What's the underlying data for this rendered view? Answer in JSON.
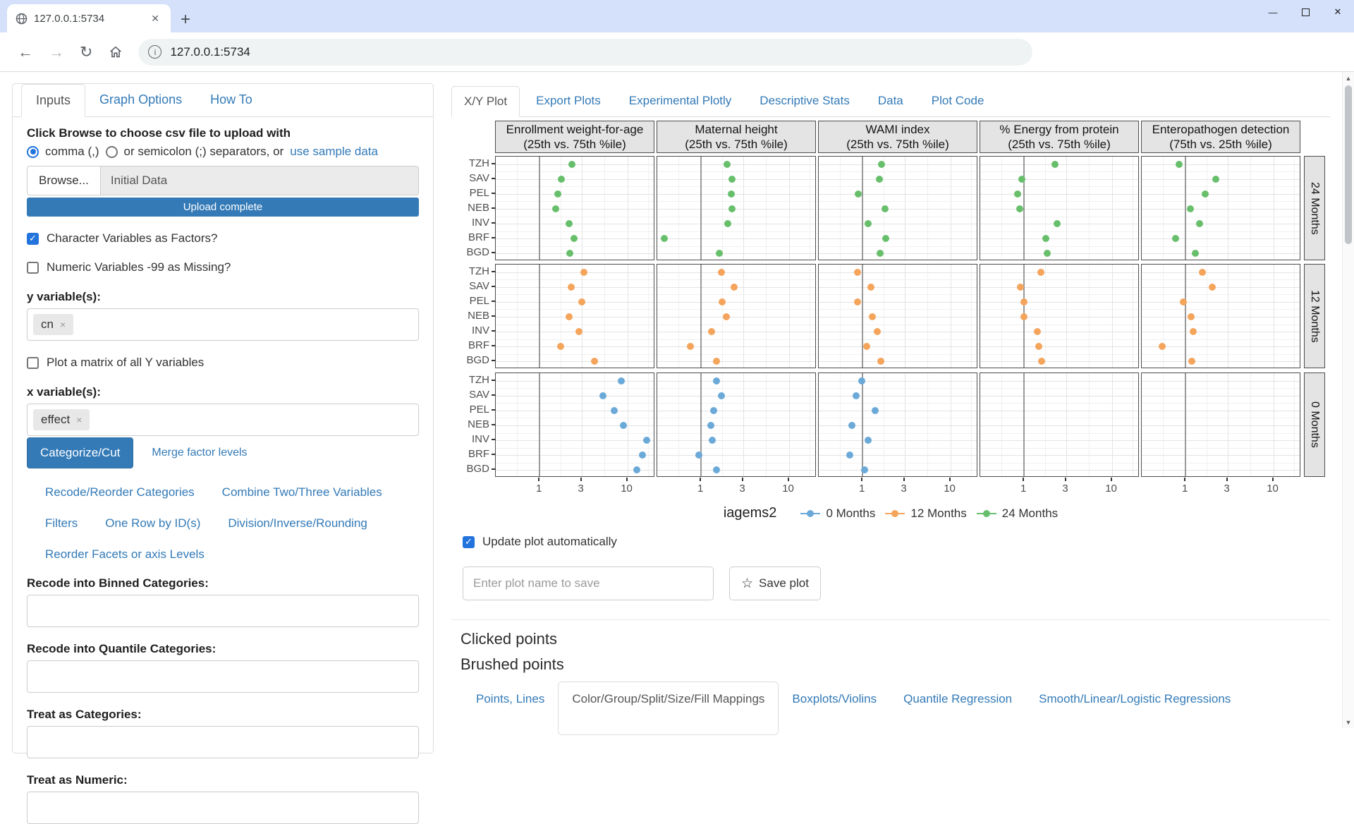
{
  "browser": {
    "tab_title": "127.0.0.1:5734",
    "url": "127.0.0.1:5734",
    "icons": {
      "back": "←",
      "forward": "→",
      "reload": "↻",
      "info": "i",
      "close_tab": "✕",
      "new_tab": "+",
      "minimize": "—",
      "close_window": "✕",
      "scroll_up": "▲",
      "scroll_down": "▼"
    }
  },
  "sidebar": {
    "tabs": [
      {
        "label": "Inputs",
        "active": true
      },
      {
        "label": "Graph Options",
        "active": false
      },
      {
        "label": "How To",
        "active": false
      }
    ],
    "upload": {
      "heading": "Click Browse to choose csv file to upload with",
      "radio_comma_label": "comma (,)",
      "radio_semicolon_label": "or semicolon (;) separators, or",
      "sample_link": "use sample data",
      "browse_label": "Browse...",
      "file_value": "Initial Data",
      "progress_text": "Upload complete"
    },
    "checkbox_char_factors": {
      "label": "Character Variables as Factors?",
      "checked": true
    },
    "checkbox_missing99": {
      "label": "Numeric Variables -99 as Missing?",
      "checked": false
    },
    "y_label": "y variable(s):",
    "y_token": "cn",
    "checkbox_matrix": {
      "label": "Plot a matrix of all Y variables",
      "checked": false
    },
    "x_label": "x variable(s):",
    "x_token": "effect",
    "categorize_button": "Categorize/Cut",
    "merge_link": "Merge factor levels",
    "link_rows": [
      [
        "Recode/Reorder Categories",
        "Combine Two/Three Variables"
      ],
      [
        "Filters",
        "One Row by ID(s)",
        "Division/Inverse/Rounding"
      ],
      [
        "Reorder Facets or axis Levels"
      ]
    ],
    "recode_fields": [
      "Recode into Binned Categories:",
      "Recode into Quantile Categories:",
      "Treat as Categories:",
      "Treat as Numeric:"
    ]
  },
  "main": {
    "tabs": [
      {
        "label": "X/Y Plot",
        "active": true
      },
      {
        "label": "Export Plots",
        "active": false
      },
      {
        "label": "Experimental Plotly",
        "active": false
      },
      {
        "label": "Descriptive Stats",
        "active": false
      },
      {
        "label": "Data",
        "active": false
      },
      {
        "label": "Plot Code",
        "active": false
      }
    ],
    "update_auto_label": "Update plot automatically",
    "update_auto_checked": true,
    "save_placeholder": "Enter plot name to save",
    "save_button": "Save plot",
    "clicked_heading": "Clicked points",
    "brushed_heading": "Brushed points",
    "bottom_tabs": [
      {
        "label": "Points, Lines",
        "active": false
      },
      {
        "label": "Color/Group/Split/Size/Fill Mappings",
        "active": true
      },
      {
        "label": "Boxplots/Violins",
        "active": false
      },
      {
        "label": "Quantile Regression",
        "active": false
      },
      {
        "label": "Smooth/Linear/Logistic Regressions",
        "active": false
      }
    ]
  },
  "chart_data": {
    "type": "scatter",
    "x_scale": "log10",
    "x_ticks": [
      1,
      3,
      10
    ],
    "x_range": [
      0.32,
      20.8
    ],
    "reference_line_x": 1,
    "grid": true,
    "legend_position": "bottom",
    "legend_title": "iagems2",
    "categories": [
      "TZH",
      "SAV",
      "PEL",
      "NEB",
      "INV",
      "BRF",
      "BGD"
    ],
    "row_facets": [
      "24 Months",
      "12 Months",
      "0 Months"
    ],
    "series_colors": {
      "0 Months": "#6aa9d8",
      "12 Months": "#f5a45c",
      "24 Months": "#68bf6b"
    },
    "legend_order": [
      "0 Months",
      "12 Months",
      "24 Months"
    ],
    "col_facets": [
      {
        "title_line1": "Enrollment weight-for-age",
        "title_line2": "(25th vs. 75th %ile)",
        "series": {
          "24 Months": [
            2.33,
            1.77,
            1.61,
            1.53,
            2.17,
            2.48,
            2.22
          ],
          "12 Months": [
            3.2,
            2.28,
            3.0,
            2.18,
            2.8,
            1.74,
            4.25
          ],
          "0 Months": [
            8.5,
            5.3,
            7.1,
            9.1,
            16.7,
            14.9,
            12.9
          ]
        }
      },
      {
        "title_line1": "Maternal height",
        "title_line2": "(25th vs. 75th %ile)",
        "series": {
          "24 Months": [
            1.97,
            2.25,
            2.22,
            2.25,
            2.03,
            0.38,
            1.61
          ],
          "12 Months": [
            1.71,
            2.36,
            1.73,
            1.94,
            1.32,
            0.76,
            1.49
          ],
          "0 Months": [
            1.51,
            1.71,
            1.39,
            1.29,
            1.34,
            0.94,
            1.51
          ]
        }
      },
      {
        "title_line1": "WAMI index",
        "title_line2": "(25th vs. 75th %ile)",
        "series": {
          "24 Months": [
            1.63,
            1.56,
            0.89,
            1.79,
            1.15,
            1.84,
            1.57
          ],
          "12 Months": [
            0.87,
            1.25,
            0.87,
            1.28,
            1.48,
            1.12,
            1.61
          ],
          "0 Months": [
            0.97,
            0.85,
            1.38,
            0.75,
            1.15,
            0.72,
            1.06
          ]
        }
      },
      {
        "title_line1": "% Energy from protein",
        "title_line2": "(25th vs. 75th %ile)",
        "series": {
          "24 Months": [
            2.24,
            0.94,
            0.84,
            0.9,
            2.39,
            1.78,
            1.83
          ],
          "12 Months": [
            1.54,
            0.91,
            1.0,
            1.0,
            1.42,
            1.46,
            1.58
          ],
          "0 Months": null
        }
      },
      {
        "title_line1": "Enteropathogen detection",
        "title_line2": "(75th vs. 25th %ile)",
        "series": {
          "24 Months": [
            0.85,
            2.2,
            1.67,
            1.14,
            1.43,
            0.77,
            1.29
          ],
          "12 Months": [
            1.55,
            2.01,
            0.95,
            1.15,
            1.22,
            0.54,
            1.18
          ],
          "0 Months": null
        }
      }
    ]
  }
}
